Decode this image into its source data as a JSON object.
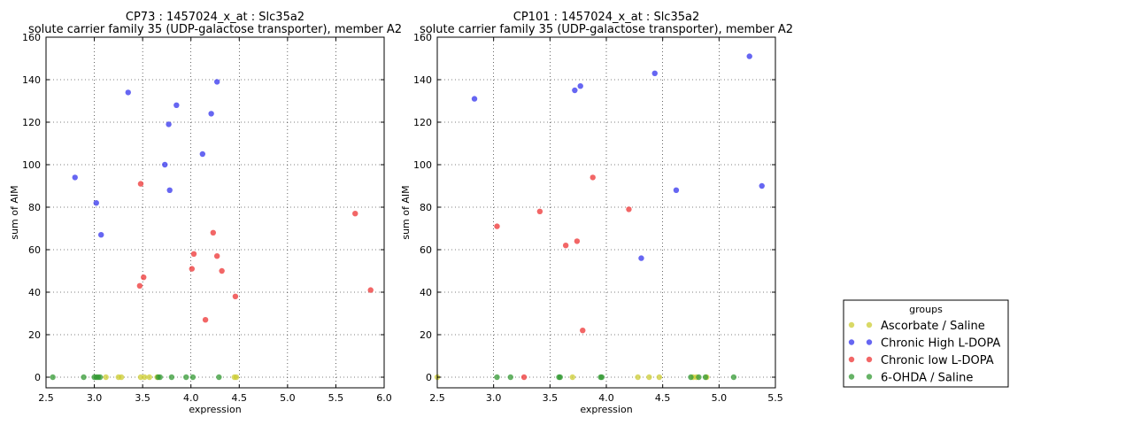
{
  "chart_data": [
    {
      "type": "scatter",
      "title": "CP73 : 1457024_x_at : Slc35a2",
      "subtitle": "solute carrier family 35 (UDP-galactose transporter), member A2",
      "xlabel": "expression",
      "ylabel": "sum of AIM",
      "xlim": [
        2.5,
        6.0
      ],
      "ylim": [
        -5,
        160
      ],
      "xticks": [
        "2.5",
        "3.0",
        "3.5",
        "4.0",
        "4.5",
        "5.0",
        "5.5",
        "6.0"
      ],
      "yticks": [
        "0",
        "20",
        "40",
        "60",
        "80",
        "100",
        "120",
        "140",
        "160"
      ],
      "grid": true,
      "series": [
        {
          "name": "Ascorbate / Saline",
          "color": "#cccc33",
          "points": [
            [
              3.12,
              0
            ],
            [
              3.25,
              0
            ],
            [
              3.28,
              0
            ],
            [
              3.48,
              0
            ],
            [
              3.52,
              0
            ],
            [
              3.57,
              0
            ],
            [
              3.65,
              0
            ],
            [
              4.45,
              0
            ],
            [
              4.47,
              0
            ]
          ]
        },
        {
          "name": "Chronic High L-DOPA",
          "color": "#3333ee",
          "points": [
            [
              2.8,
              94
            ],
            [
              3.02,
              82
            ],
            [
              3.07,
              67
            ],
            [
              3.35,
              134
            ],
            [
              3.73,
              100
            ],
            [
              3.77,
              119
            ],
            [
              3.78,
              88
            ],
            [
              3.85,
              128
            ],
            [
              4.12,
              105
            ],
            [
              4.21,
              124
            ],
            [
              4.27,
              139
            ]
          ]
        },
        {
          "name": "Chronic low L-DOPA",
          "color": "#ee3333",
          "points": [
            [
              3.47,
              43
            ],
            [
              3.48,
              91
            ],
            [
              3.51,
              47
            ],
            [
              4.01,
              51
            ],
            [
              4.03,
              58
            ],
            [
              4.15,
              27
            ],
            [
              4.23,
              68
            ],
            [
              4.27,
              57
            ],
            [
              4.32,
              50
            ],
            [
              4.46,
              38
            ],
            [
              5.7,
              77
            ],
            [
              5.86,
              41
            ]
          ]
        },
        {
          "name": "6-OHDA / Saline",
          "color": "#339933",
          "points": [
            [
              2.57,
              0
            ],
            [
              2.89,
              0
            ],
            [
              3.0,
              0
            ],
            [
              3.02,
              0
            ],
            [
              3.04,
              0
            ],
            [
              3.06,
              0
            ],
            [
              3.66,
              0
            ],
            [
              3.68,
              0
            ],
            [
              3.8,
              0
            ],
            [
              3.95,
              0
            ],
            [
              4.02,
              0
            ],
            [
              4.29,
              0
            ]
          ]
        }
      ]
    },
    {
      "type": "scatter",
      "title": "CP101 : 1457024_x_at : Slc35a2",
      "subtitle": "solute carrier family 35 (UDP-galactose transporter), member A2",
      "xlabel": "expression",
      "ylabel": "sum of AIM",
      "xlim": [
        2.5,
        5.5
      ],
      "ylim": [
        -5,
        160
      ],
      "xticks": [
        "2.5",
        "3.0",
        "3.5",
        "4.0",
        "4.5",
        "5.0",
        "5.5"
      ],
      "yticks": [
        "0",
        "20",
        "40",
        "60",
        "80",
        "100",
        "120",
        "140",
        "160"
      ],
      "grid": true,
      "series": [
        {
          "name": "Ascorbate / Saline",
          "color": "#cccc33",
          "points": [
            [
              2.5,
              0
            ],
            [
              3.7,
              0
            ],
            [
              4.28,
              0
            ],
            [
              4.38,
              0
            ],
            [
              4.47,
              0
            ],
            [
              4.77,
              0
            ],
            [
              4.8,
              0
            ],
            [
              4.89,
              0
            ]
          ]
        },
        {
          "name": "Chronic High L-DOPA",
          "color": "#3333ee",
          "points": [
            [
              2.83,
              131
            ],
            [
              3.72,
              135
            ],
            [
              3.77,
              137
            ],
            [
              4.31,
              56
            ],
            [
              4.43,
              143
            ],
            [
              4.62,
              88
            ],
            [
              5.27,
              151
            ],
            [
              5.38,
              90
            ]
          ]
        },
        {
          "name": "Chronic low L-DOPA",
          "color": "#ee3333",
          "points": [
            [
              3.03,
              71
            ],
            [
              3.27,
              0
            ],
            [
              3.41,
              78
            ],
            [
              3.64,
              62
            ],
            [
              3.74,
              64
            ],
            [
              3.79,
              22
            ],
            [
              3.88,
              94
            ],
            [
              4.2,
              79
            ]
          ]
        },
        {
          "name": "6-OHDA / Saline",
          "color": "#339933",
          "points": [
            [
              3.03,
              0
            ],
            [
              3.15,
              0
            ],
            [
              3.58,
              0
            ],
            [
              3.59,
              0
            ],
            [
              3.95,
              0
            ],
            [
              3.96,
              0
            ],
            [
              4.75,
              0
            ],
            [
              4.82,
              0
            ],
            [
              4.88,
              0
            ],
            [
              5.13,
              0
            ]
          ]
        }
      ]
    }
  ],
  "legend": {
    "title": "groups",
    "position": "bottom-right",
    "entries": [
      {
        "label": "Ascorbate / Saline",
        "color": "#cccc33"
      },
      {
        "label": "Chronic High L-DOPA",
        "color": "#3333ee"
      },
      {
        "label": "Chronic low L-DOPA",
        "color": "#ee3333"
      },
      {
        "label": "6-OHDA / Saline",
        "color": "#339933"
      }
    ]
  }
}
